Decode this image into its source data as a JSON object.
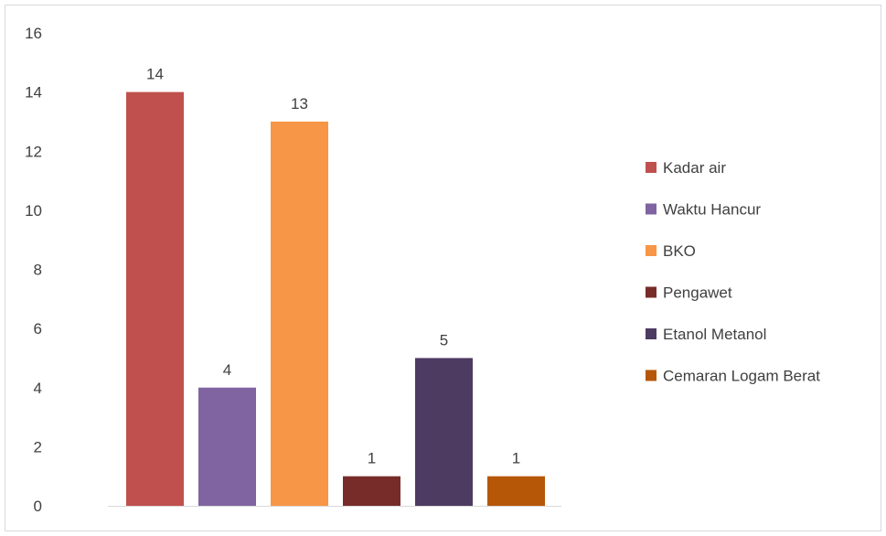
{
  "chart_data": {
    "type": "bar",
    "title": "",
    "xlabel": "",
    "ylabel": "",
    "ylim": [
      0,
      16
    ],
    "yticks": [
      0,
      2,
      4,
      6,
      8,
      10,
      12,
      14,
      16
    ],
    "grid": false,
    "legend_position": "right",
    "series": [
      {
        "name": "Kadar air",
        "value": 14,
        "label": "14",
        "color": "#C0504D"
      },
      {
        "name": "Waktu Hancur",
        "value": 4,
        "label": "4",
        "color": "#8064A2"
      },
      {
        "name": "BKO",
        "value": 13,
        "label": "13",
        "color": "#F79646"
      },
      {
        "name": "Pengawet",
        "value": 1,
        "label": "1",
        "color": "#772C2A"
      },
      {
        "name": "Etanol Metanol",
        "value": 5,
        "label": "5",
        "color": "#4D3B62"
      },
      {
        "name": "Cemaran Logam Berat",
        "value": 1,
        "label": "1",
        "color": "#B65708"
      }
    ]
  }
}
